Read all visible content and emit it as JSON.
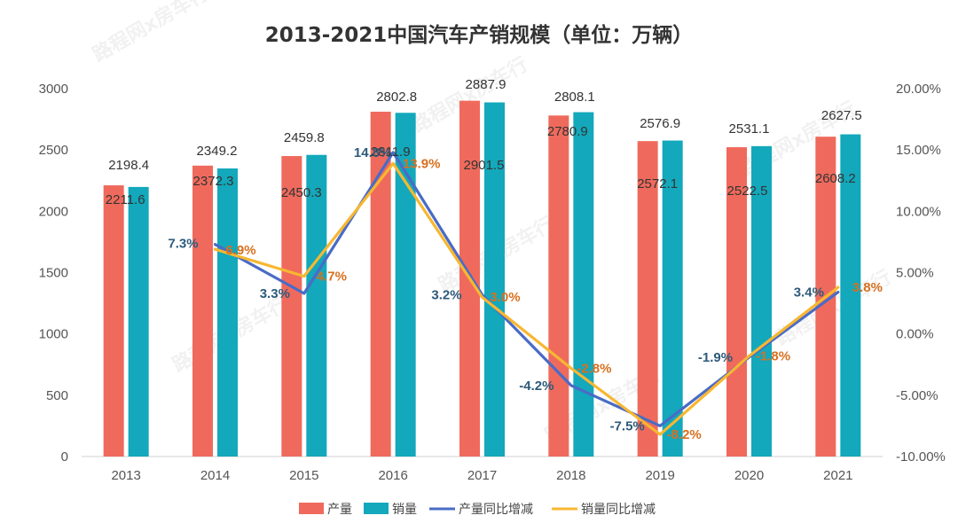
{
  "chart_data": {
    "type": "bar+line",
    "title": "2013-2021中国汽车产销规模（单位：万辆）",
    "categories": [
      "2013",
      "2014",
      "2015",
      "2016",
      "2017",
      "2018",
      "2019",
      "2020",
      "2021"
    ],
    "y_left": {
      "min": 0,
      "max": 3000,
      "ticks": [
        "0",
        "500",
        "1000",
        "1500",
        "2000",
        "2500",
        "3000"
      ]
    },
    "y_right": {
      "min": -10,
      "max": 20,
      "ticks": [
        "-10.00%",
        "-5.00%",
        "0.00%",
        "5.00%",
        "10.00%",
        "15.00%",
        "20.00%"
      ]
    },
    "bars": [
      {
        "name": "产量",
        "color": "#ef6a5c",
        "values": [
          2211.6,
          2372.3,
          2450.3,
          2811.9,
          2901.5,
          2780.9,
          2572.1,
          2522.5,
          2608.2
        ],
        "labels": [
          "2211.6",
          "2372.3",
          "2450.3",
          "2811.9",
          "2901.5",
          "2780.9",
          "2572.1",
          "2522.5",
          "2608.2"
        ]
      },
      {
        "name": "销量",
        "color": "#13a8bb",
        "values": [
          2198.4,
          2349.2,
          2459.8,
          2802.8,
          2887.9,
          2808.1,
          2576.9,
          2531.1,
          2627.5
        ],
        "labels": [
          "2198.4",
          "2349.2",
          "2459.8",
          "2802.8",
          "2887.9",
          "2808.1",
          "2576.9",
          "2531.1",
          "2627.5"
        ]
      }
    ],
    "lines": [
      {
        "name": "产量同比增减",
        "color": "#4a6bc6",
        "label_color": "#2d5a7b",
        "values": [
          null,
          7.3,
          3.3,
          14.8,
          3.2,
          -4.2,
          -7.5,
          -1.9,
          3.4
        ],
        "labels": [
          "",
          "7.3%",
          "3.3%",
          "14.8%",
          "3.2%",
          "-4.2%",
          "-7.5%",
          "-1.9%",
          "3.4%"
        ]
      },
      {
        "name": "销量同比增减",
        "color": "#f7b731",
        "label_color": "#d8701f",
        "values": [
          null,
          6.9,
          4.7,
          13.9,
          3.0,
          -2.8,
          -8.2,
          -1.8,
          3.8
        ],
        "labels": [
          "",
          "6.9%",
          "4.7%",
          "13.9%",
          "3.0%",
          "-2.8%",
          "-8.2%",
          "-1.8%",
          "3.8%"
        ]
      }
    ]
  },
  "watermark": "路程网x房车行"
}
